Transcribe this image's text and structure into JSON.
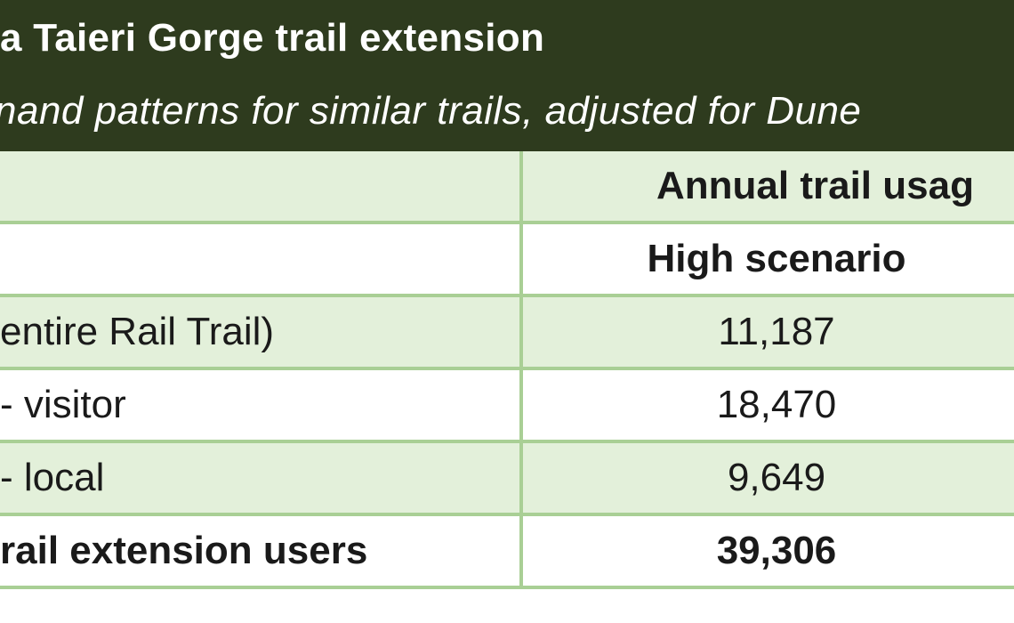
{
  "header": {
    "title": "a Taieri Gorge trail extension",
    "subtitle": "nand patterns for similar trails, adjusted for Dune"
  },
  "table": {
    "column_group_header": "Annual trail usag",
    "scenario_header": "High scenario",
    "rows": [
      {
        "label": "entire Rail Trail)",
        "value": "11,187"
      },
      {
        "label": "- visitor",
        "value": "18,470"
      },
      {
        "label": "- local",
        "value": "9,649"
      },
      {
        "label": "rail extension users",
        "value": "39,306"
      }
    ]
  },
  "colors": {
    "header_bg": "#2e3b1e",
    "row_shade": "#e3f0da",
    "grid_line": "#a9cf95"
  }
}
